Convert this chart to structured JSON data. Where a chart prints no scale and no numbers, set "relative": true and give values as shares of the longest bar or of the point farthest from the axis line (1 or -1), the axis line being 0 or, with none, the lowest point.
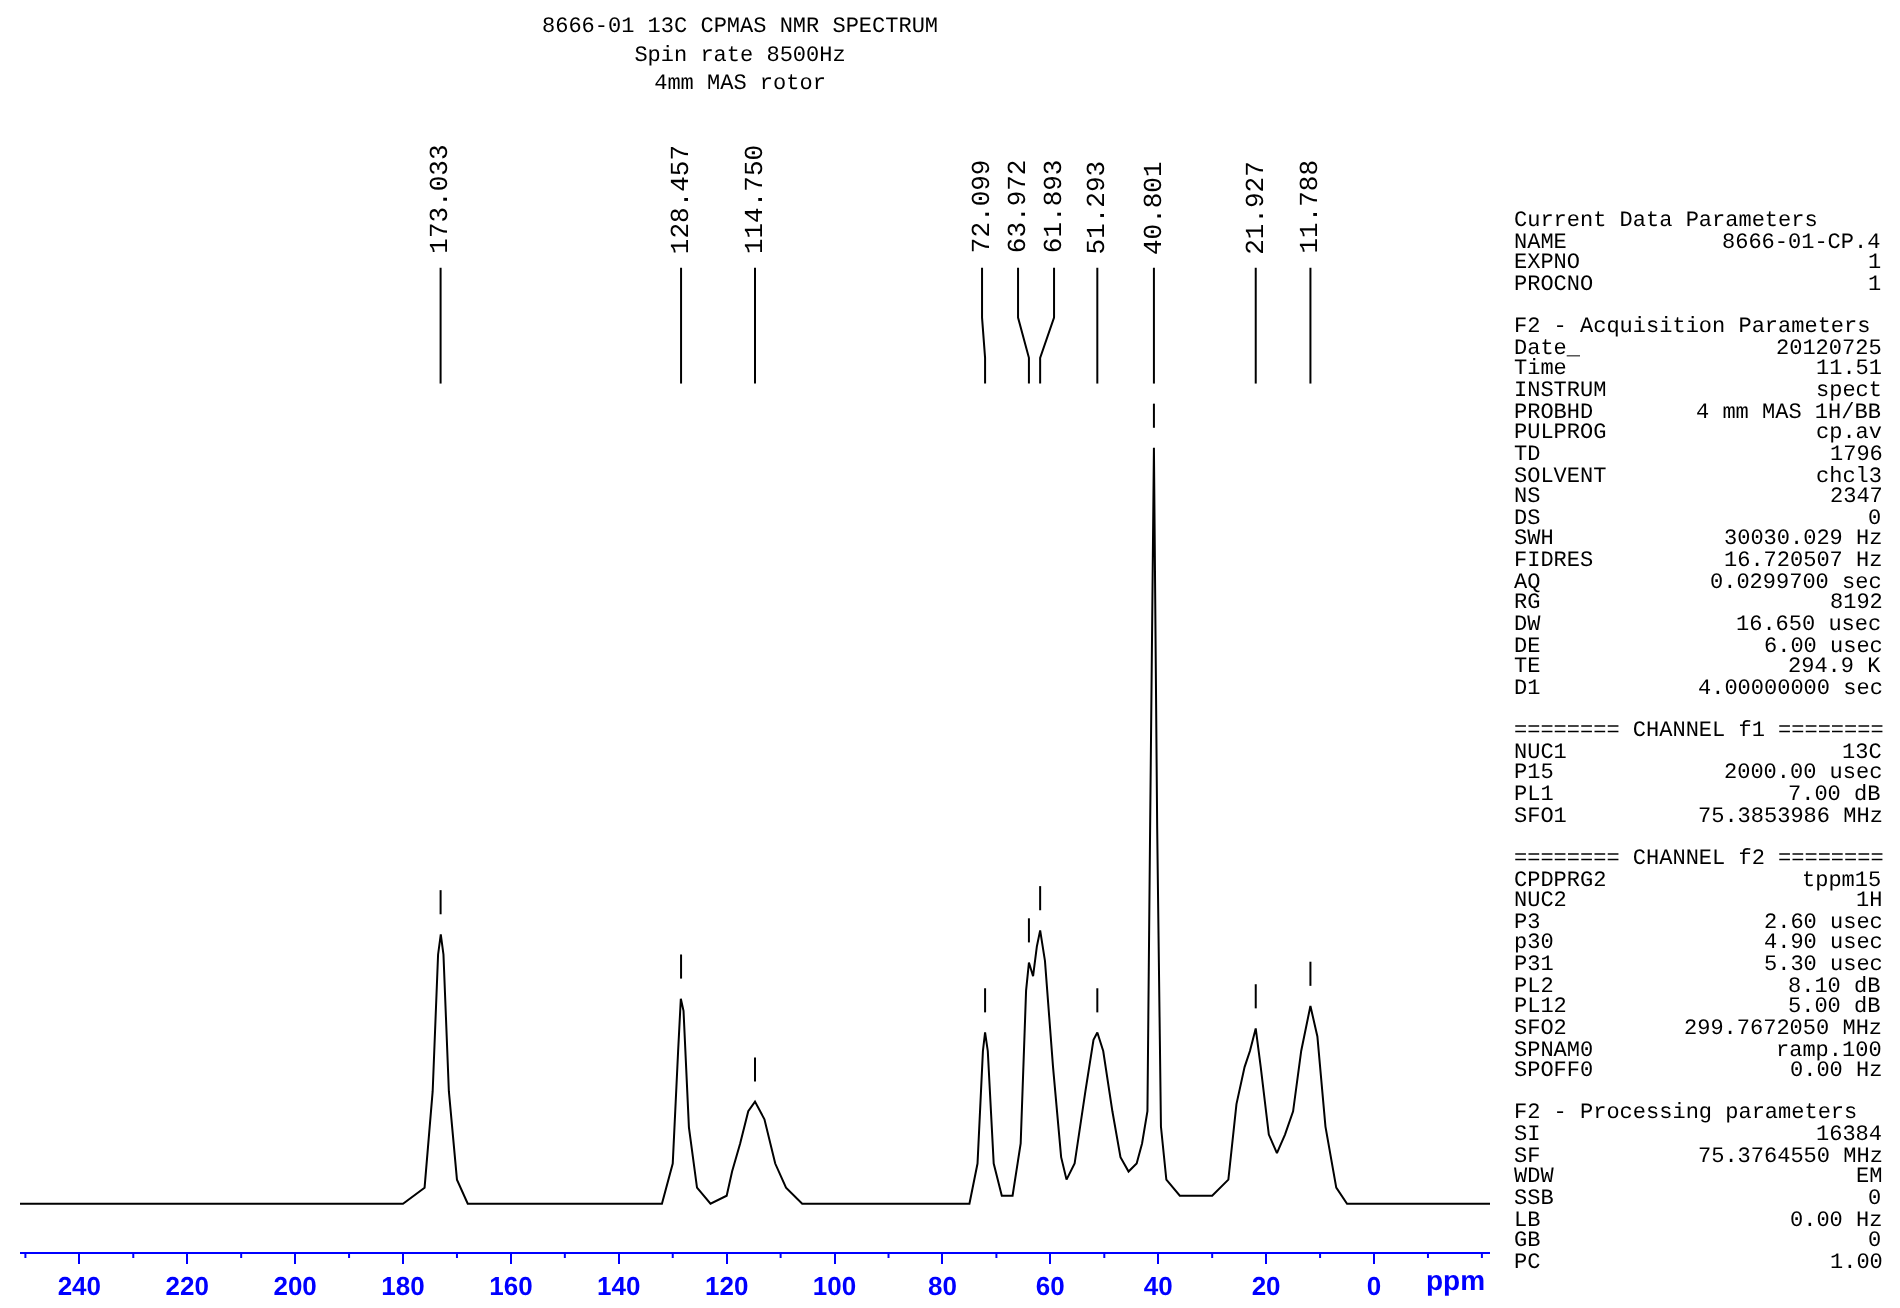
{
  "chart_data": {
    "type": "line",
    "title": "8666-01 13C CPMAS NMR SPECTRUM",
    "subtitle": "Spin rate 8500Hz\n4mm MAS rotor",
    "xlabel": "ppm",
    "color": "#000000",
    "relative": true,
    "grid": false,
    "tick_labels": "x",
    "xlim": [
      251,
      -21.5
    ],
    "xticks": [
      {
        "value": 250,
        "label": null
      },
      240,
      {
        "value": 230,
        "label": null
      },
      220,
      {
        "value": 210,
        "label": null
      },
      200,
      {
        "value": 190,
        "label": null
      },
      180,
      {
        "value": 170,
        "label": null
      },
      160,
      {
        "value": 150,
        "label": null
      },
      140,
      {
        "value": 130,
        "label": null
      },
      120,
      {
        "value": 110,
        "label": null
      },
      100,
      {
        "value": 90,
        "label": null
      },
      80,
      {
        "value": 70,
        "label": null
      },
      60,
      {
        "value": 50,
        "label": null
      },
      40,
      {
        "value": 30,
        "label": null
      },
      20,
      {
        "value": 10,
        "label": null
      },
      0,
      {
        "value": -10,
        "label": null
      },
      {
        "value": -20,
        "label": null
      }
    ],
    "x": [
      251,
      180,
      176,
      174.5,
      173.5,
      173,
      172.5,
      171.5,
      170,
      168,
      132,
      130,
      129,
      128.5,
      128,
      127,
      125.5,
      123,
      120,
      119,
      117.5,
      116,
      114.75,
      113,
      111,
      109,
      106,
      75,
      73.5,
      72.5,
      72.1,
      71.6,
      70.5,
      69,
      67,
      65.5,
      64.5,
      63.97,
      63.2,
      62.5,
      61.89,
      61,
      59.5,
      58,
      57,
      55.5,
      53.5,
      52,
      51.29,
      50.2,
      48.5,
      47,
      45.5,
      44,
      43,
      42,
      41.5,
      40.8,
      40.2,
      39.5,
      38.5,
      36,
      30,
      27,
      25.5,
      24,
      23,
      21.93,
      21,
      19.5,
      18,
      16.5,
      15,
      13.5,
      11.79,
      10.5,
      9,
      7,
      5,
      -21.5
    ],
    "values": [
      0.06,
      0.06,
      0.08,
      0.2,
      0.37,
      0.395,
      0.37,
      0.2,
      0.09,
      0.06,
      0.06,
      0.11,
      0.25,
      0.315,
      0.3,
      0.155,
      0.08,
      0.06,
      0.07,
      0.1,
      0.135,
      0.175,
      0.187,
      0.165,
      0.11,
      0.08,
      0.06,
      0.06,
      0.11,
      0.25,
      0.273,
      0.25,
      0.11,
      0.07,
      0.07,
      0.135,
      0.325,
      0.36,
      0.343,
      0.38,
      0.4,
      0.362,
      0.23,
      0.118,
      0.09,
      0.11,
      0.2,
      0.264,
      0.273,
      0.25,
      0.175,
      0.118,
      0.1,
      0.11,
      0.135,
      0.175,
      0.53,
      1,
      0.53,
      0.156,
      0.09,
      0.07,
      0.07,
      0.09,
      0.184,
      0.23,
      0.25,
      0.278,
      0.23,
      0.146,
      0.123,
      0.146,
      0.175,
      0.25,
      0.306,
      0.268,
      0.156,
      0.08,
      0.06,
      0.06
    ],
    "annotations": [
      {
        "text": "173.033",
        "x": 173.033
      },
      {
        "text": "128.457",
        "x": 128.457
      },
      {
        "text": "114.750",
        "x": 114.75
      },
      {
        "text": "72.099",
        "x": 72.099
      },
      {
        "text": "63.972",
        "x": 63.972
      },
      {
        "text": "61.893",
        "x": 61.893
      },
      {
        "text": "51.293",
        "x": 51.293
      },
      {
        "text": "40.801",
        "x": 40.801
      },
      {
        "text": "21.927",
        "x": 21.927
      },
      {
        "text": "11.788",
        "x": 11.788
      },
      "Current Data Parameters",
      "NAME  8666-01-CP.4",
      "EXPNO  1",
      "PROCNO  1",
      "F2 - Acquisition Parameters",
      "Date_  20120725",
      "Time  11.51",
      "INSTRUM  spect",
      "PROBHD  4 mm MAS 1H/BB",
      "PULPROG  cp.av",
      "TD  1796",
      "SOLVENT  chcl3",
      "NS  2347",
      "DS  0",
      "SWH  30030.029 Hz",
      "FIDRES  16.720507 Hz",
      "AQ  0.0299700 sec",
      "RG  8192",
      "DW  16.650 usec",
      "DE  6.00 usec",
      "TE  294.9 K",
      "D1  4.00000000 sec",
      "======== CHANNEL f1 ========",
      "NUC1  13C",
      "P15  2000.00 usec",
      "PL1  7.00 dB",
      "SFO1  75.3853986 MHz",
      "======== CHANNEL f2 ========",
      "CPDPRG2  tppm15",
      "NUC2  1H",
      "P3  2.60 usec",
      "p30  4.90 usec",
      "P31  5.30 usec",
      "PL2  8.10 dB",
      "PL12  5.00 dB",
      "SFO2  299.7672050 MHz",
      "SPNAM0  ramp.100",
      "SPOFF0  0.00 Hz",
      "F2 - Processing parameters",
      "SI  16384",
      "SF  75.3764550 MHz",
      "WDW  EM",
      "SSB  0",
      "LB  0.00 Hz",
      "GB  0",
      "PC  1.00"
    ]
  }
}
